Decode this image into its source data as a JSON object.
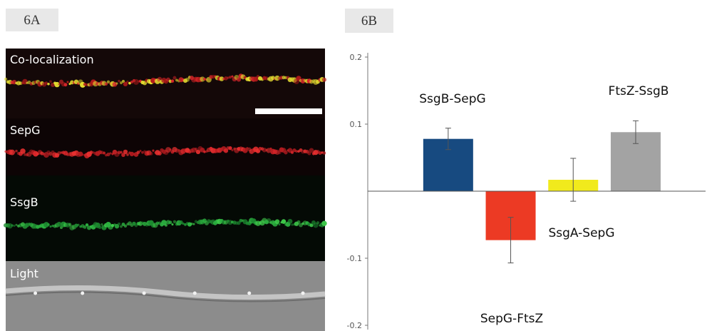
{
  "panel_a": {
    "label": "6A",
    "rows": [
      "Co-localization",
      "SepG",
      "SsgB",
      "Light"
    ]
  },
  "chart_data": {
    "type": "bar",
    "label": "6B",
    "categories": [
      "SsgB-SepG",
      "SepG-FtsZ",
      "SsgA-SepG",
      "FtsZ-SsgB"
    ],
    "values": [
      0.078,
      -0.073,
      0.017,
      0.088
    ],
    "errors": [
      0.016,
      0.034,
      0.032,
      0.017
    ],
    "colors": [
      "#174a80",
      "#ec3a24",
      "#f1ea1c",
      "#a3a3a3"
    ],
    "ylim": [
      -0.2,
      0.2
    ],
    "yticks": [
      0.2,
      0.1,
      -0.1,
      -0.2
    ]
  }
}
